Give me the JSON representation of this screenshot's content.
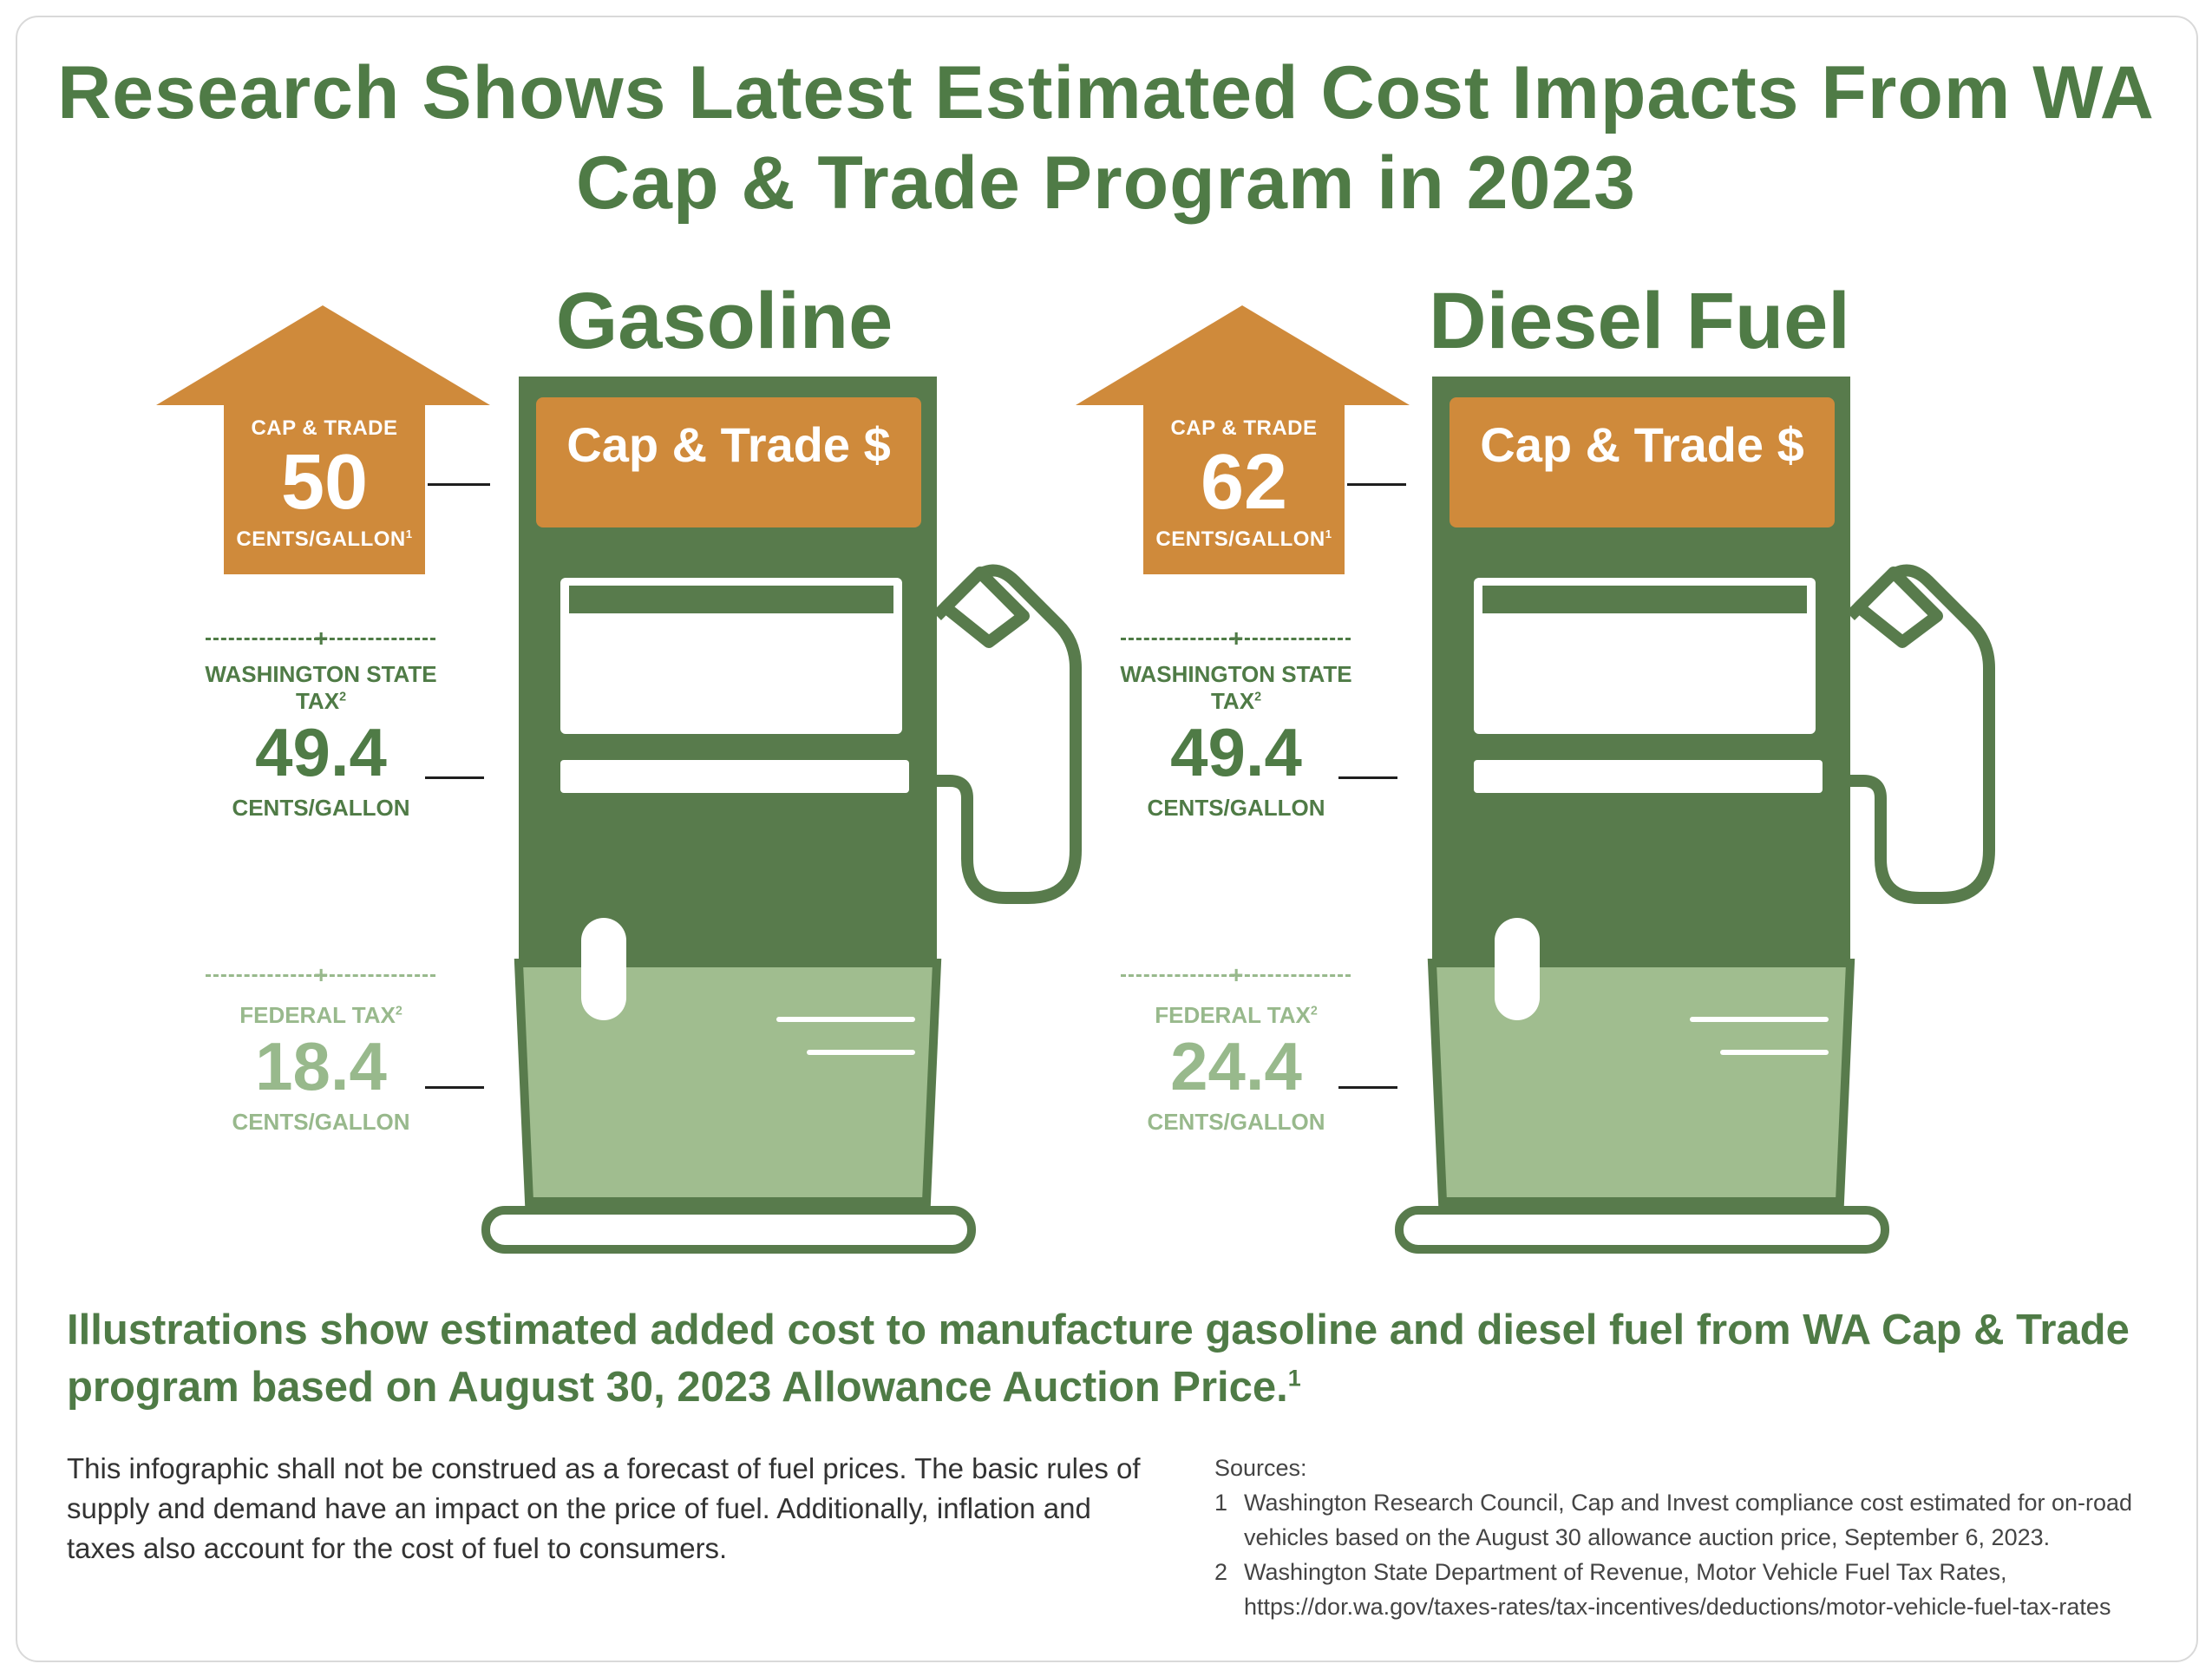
{
  "title": "Research Shows Latest Estimated Cost Impacts From WA Cap & Trade Program in 2023",
  "pumps": [
    {
      "fuel": "Gasoline",
      "screen_label": "Cap & Trade $",
      "cap_trade": {
        "heading": "CAP & TRADE",
        "value": "50",
        "unit": "CENTS/GALLON",
        "footnote": "1"
      },
      "state_tax": {
        "heading": "WASHINGTON STATE TAX",
        "footnote": "2",
        "value": "49.4",
        "unit": "CENTS/GALLON"
      },
      "federal_tax": {
        "heading": "FEDERAL TAX",
        "footnote": "2",
        "value": "18.4",
        "unit": "CENTS/GALLON"
      }
    },
    {
      "fuel": "Diesel Fuel",
      "screen_label": "Cap & Trade $",
      "cap_trade": {
        "heading": "CAP & TRADE",
        "value": "62",
        "unit": "CENTS/GALLON",
        "footnote": "1"
      },
      "state_tax": {
        "heading": "WASHINGTON STATE TAX",
        "footnote": "2",
        "value": "49.4",
        "unit": "CENTS/GALLON"
      },
      "federal_tax": {
        "heading": "FEDERAL TAX",
        "footnote": "2",
        "value": "24.4",
        "unit": "CENTS/GALLON"
      }
    }
  ],
  "separator_symbol": "+",
  "summary": "Illustrations show estimated added cost to manufacture gasoline and diesel fuel from WA Cap & Trade program based on August 30, 2023 Allowance Auction Price.",
  "summary_footnote": "1",
  "disclaimer": "This infographic shall not be construed as a forecast of fuel prices. The basic rules of supply and demand have an impact on the price of fuel. Additionally, inflation and taxes also account for the cost of fuel to consumers.",
  "sources": {
    "heading": "Sources:",
    "items": [
      {
        "num": "1",
        "text": "Washington Research Council, Cap and Invest compliance cost estimated for on-road vehicles based on the August 30 allowance auction price, September 6, 2023."
      },
      {
        "num": "2",
        "text": "Washington State Department of Revenue, Motor Vehicle Fuel Tax Rates, https://dor.wa.gov/taxes-rates/tax-incentives/deductions/motor-vehicle-fuel-tax-rates"
      }
    ]
  },
  "colors": {
    "dark_green": "#4f7b46",
    "pump_green": "#587b4c",
    "light_green": "#a0bd8f",
    "orange": "#cf8a3b",
    "federal_text": "#98b98c"
  }
}
